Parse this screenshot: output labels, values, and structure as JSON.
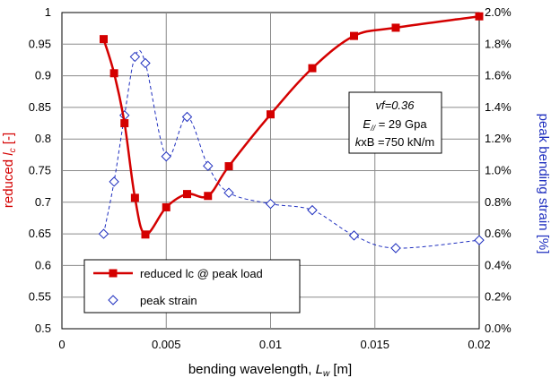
{
  "chart_data": {
    "type": "line",
    "xlabel": "bending wavelength,",
    "xlabel_symbol": "L",
    "xlabel_subscript": "w",
    "xlabel_unit": "[m]",
    "ylabel_left": "reduced",
    "ylabel_left_symbol": "l",
    "ylabel_left_subscript": "c",
    "ylabel_left_unit": "[-]",
    "ylabel_right": "peak bending strain [%]",
    "xlim": [
      0,
      0.02
    ],
    "ylim_left": [
      0.5,
      1.0
    ],
    "ylim_right": [
      0.0,
      0.02
    ],
    "x_ticks": [
      "0",
      "0.005",
      "0.01",
      "0.015",
      "0.02"
    ],
    "y_left_ticks": [
      "0.5",
      "0.55",
      "0.6",
      "0.65",
      "0.7",
      "0.75",
      "0.8",
      "0.85",
      "0.9",
      "0.95",
      "1"
    ],
    "y_right_ticks": [
      "0.0%",
      "0.2%",
      "0.4%",
      "0.6%",
      "0.8%",
      "1.0%",
      "1.2%",
      "1.4%",
      "1.6%",
      "1.8%",
      "2.0%"
    ],
    "grid": true,
    "legend_position": "bottom-left",
    "series": [
      {
        "name": "reduced lc @ peak load",
        "axis": "left",
        "color": "#d40000",
        "marker": "filled-square",
        "line": "solid",
        "x": [
          0.002,
          0.0025,
          0.003,
          0.0035,
          0.004,
          0.005,
          0.006,
          0.007,
          0.008,
          0.01,
          0.012,
          0.014,
          0.016,
          0.02
        ],
        "y": [
          0.958,
          0.904,
          0.825,
          0.707,
          0.649,
          0.692,
          0.713,
          0.71,
          0.757,
          0.839,
          0.912,
          0.963,
          0.976,
          0.994
        ]
      },
      {
        "name": "peak strain",
        "axis": "right",
        "color": "#1f2fbf",
        "marker": "open-diamond",
        "line": "dashed",
        "x": [
          0.002,
          0.0025,
          0.003,
          0.0035,
          0.004,
          0.005,
          0.006,
          0.007,
          0.008,
          0.01,
          0.012,
          0.014,
          0.016,
          0.02
        ],
        "y": [
          0.006,
          0.0093,
          0.0135,
          0.0172,
          0.0168,
          0.0109,
          0.0134,
          0.0103,
          0.0086,
          0.0079,
          0.0075,
          0.0059,
          0.0051,
          0.0056
        ]
      }
    ],
    "annotation": {
      "line1": "vf=0.36",
      "line2_sym": "E",
      "line2_sub": "//",
      "line2_val": " = 29 Gpa",
      "line3_sym": "k",
      "line3_val": "xB =750 kN/m"
    }
  }
}
